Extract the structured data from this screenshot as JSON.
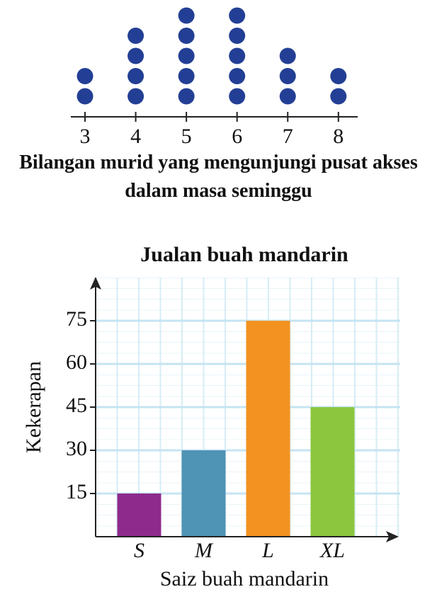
{
  "chart_data": [
    {
      "type": "dot",
      "xlabel": "Bilangan murid yang mengunjungi pusat akses dalam masa seminggu",
      "x": [
        3,
        4,
        5,
        6,
        7,
        8
      ],
      "values": [
        2,
        4,
        5,
        5,
        3,
        2
      ],
      "color": "#233f95",
      "xlim": [
        2.72,
        8.38
      ],
      "xticks": [
        3,
        4,
        5,
        6,
        7,
        8
      ]
    },
    {
      "type": "bar",
      "title": "Jualan buah mandarin",
      "xlabel": "Saiz buah mandarin",
      "ylabel": "Kekerapan",
      "categories": [
        "S",
        "M",
        "L",
        "XL"
      ],
      "values": [
        15,
        30,
        75,
        45
      ],
      "colors": [
        "#8e2a8c",
        "#4f93b5",
        "#f39220",
        "#8cc63f"
      ],
      "ylim": [
        0,
        90
      ],
      "yticks": [
        15,
        30,
        45,
        60,
        75
      ],
      "grid": true
    }
  ]
}
